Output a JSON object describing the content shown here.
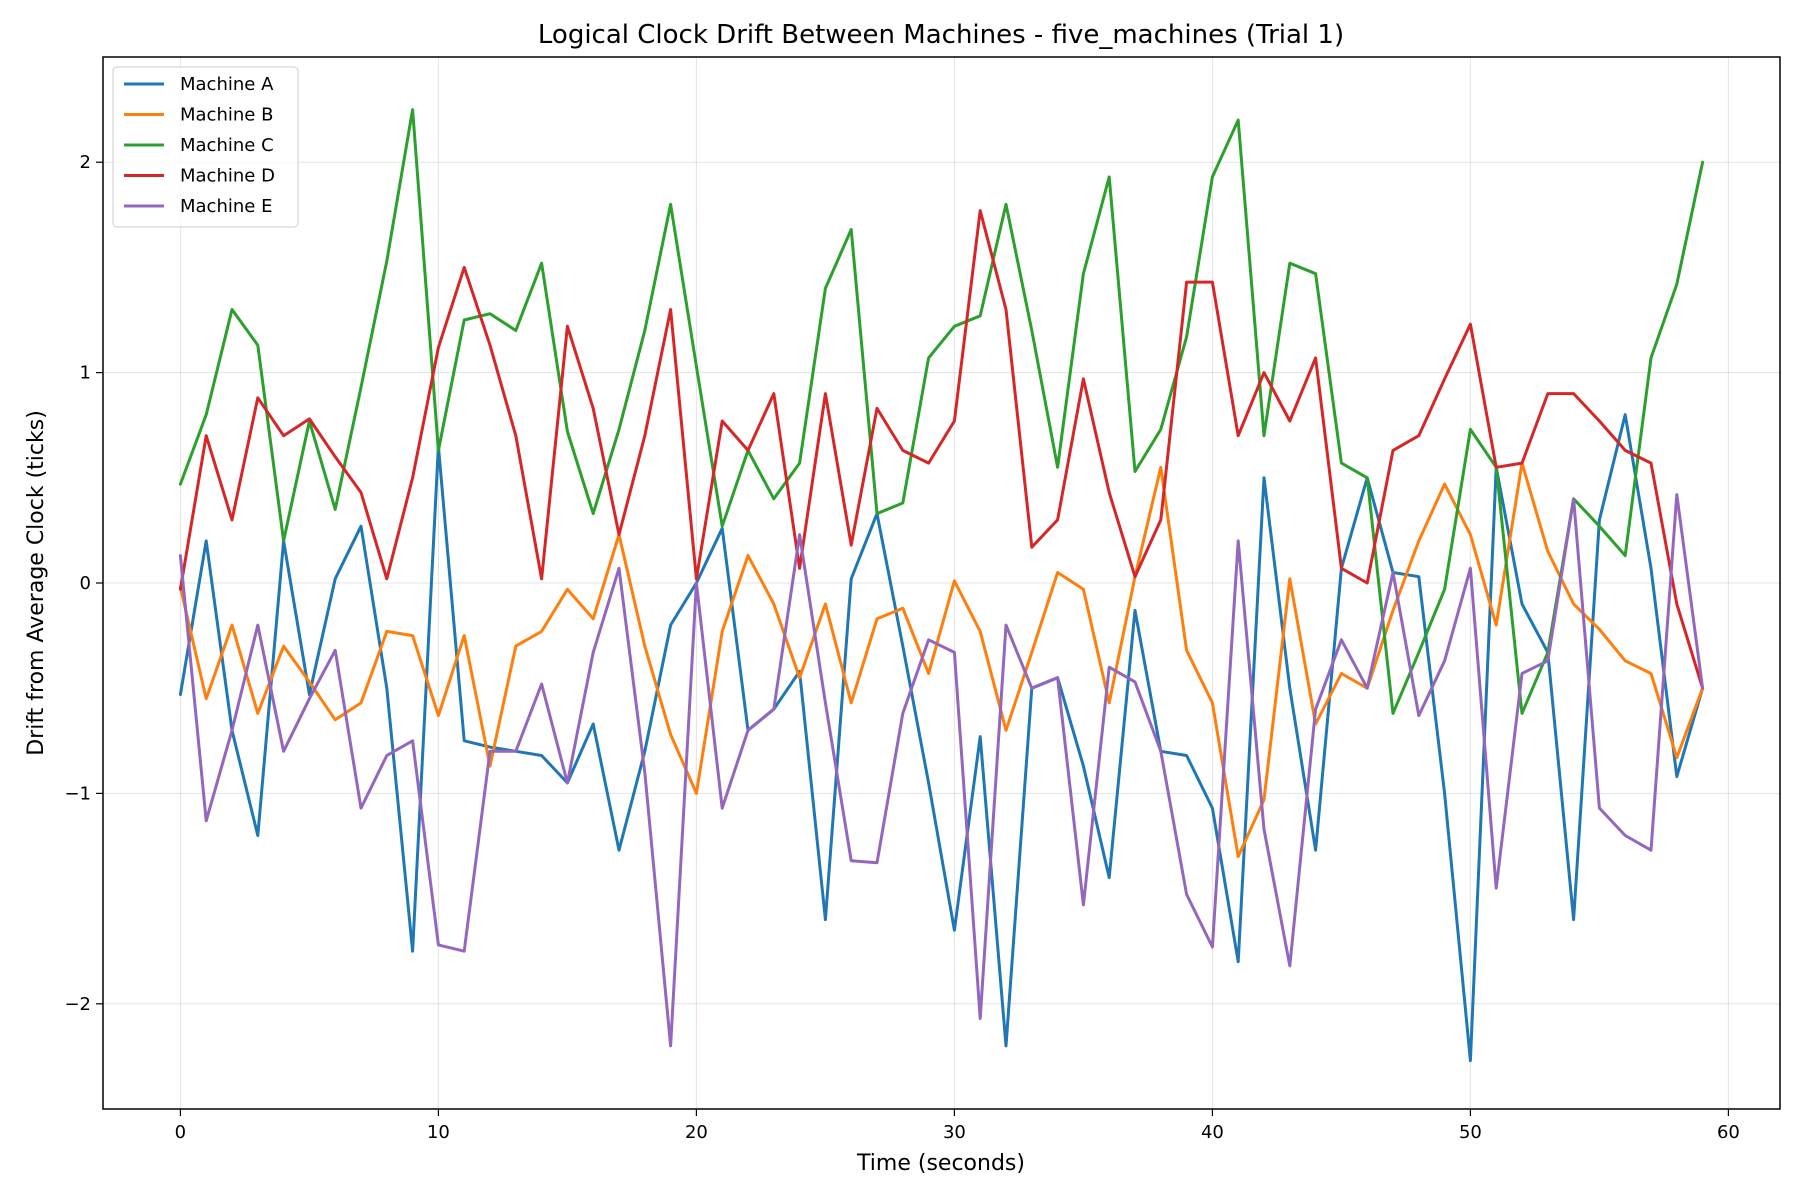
{
  "chart_data": {
    "type": "line",
    "title": "Logical Clock Drift Between Machines - five_machines (Trial 1)",
    "xlabel": "Time (seconds)",
    "ylabel": "Drift from Average Clock (ticks)",
    "xlim": [
      -3,
      62
    ],
    "ylim": [
      -2.5,
      2.5
    ],
    "xticks": [
      0,
      10,
      20,
      30,
      40,
      50,
      60
    ],
    "xtick_labels": [
      "0",
      "10",
      "20",
      "30",
      "40",
      "50",
      "60"
    ],
    "yticks": [
      -2,
      -1,
      0,
      1,
      2
    ],
    "ytick_labels": [
      "−2",
      "−1",
      "0",
      "1",
      "2"
    ],
    "grid": true,
    "legend_position": "top-left",
    "x": [
      0,
      1,
      2,
      3,
      4,
      5,
      6,
      7,
      8,
      9,
      10,
      11,
      12,
      13,
      14,
      15,
      16,
      17,
      18,
      19,
      20,
      21,
      22,
      23,
      24,
      25,
      26,
      27,
      28,
      29,
      30,
      31,
      32,
      33,
      34,
      35,
      36,
      37,
      38,
      39,
      40,
      41,
      42,
      43,
      44,
      45,
      46,
      47,
      48,
      49,
      50,
      51,
      52,
      53,
      54,
      55,
      56,
      57,
      58,
      59
    ],
    "series": [
      {
        "name": "Machine A",
        "color": "#1f77b4",
        "values": [
          -0.53,
          0.2,
          -0.7,
          -1.2,
          0.2,
          -0.53,
          0.02,
          0.27,
          -0.5,
          -1.75,
          0.65,
          -0.75,
          -0.78,
          -0.8,
          -0.82,
          -0.95,
          -0.67,
          -1.27,
          -0.8,
          -0.2,
          0.0,
          0.26,
          -0.7,
          -0.6,
          -0.42,
          -1.6,
          0.02,
          0.33,
          -0.3,
          -0.95,
          -1.65,
          -0.73,
          -2.2,
          -0.5,
          -0.45,
          -0.87,
          -1.4,
          -0.13,
          -0.8,
          -0.82,
          -1.07,
          -1.8,
          0.5,
          -0.5,
          -1.27,
          0.07,
          0.5,
          0.05,
          0.03,
          -1.0,
          -2.27,
          0.55,
          -0.1,
          -0.33,
          -1.6,
          0.3,
          0.8,
          0.07,
          -0.92,
          -0.5
        ]
      },
      {
        "name": "Machine B",
        "color": "#ff7f0e",
        "values": [
          -0.02,
          -0.55,
          -0.2,
          -0.62,
          -0.3,
          -0.47,
          -0.65,
          -0.57,
          -0.23,
          -0.25,
          -0.63,
          -0.25,
          -0.87,
          -0.3,
          -0.23,
          -0.03,
          -0.17,
          0.23,
          -0.3,
          -0.72,
          -1.0,
          -0.23,
          0.13,
          -0.1,
          -0.45,
          -0.1,
          -0.57,
          -0.17,
          -0.12,
          -0.43,
          0.01,
          -0.23,
          -0.7,
          -0.33,
          0.05,
          -0.03,
          -0.57,
          0.03,
          0.55,
          -0.32,
          -0.57,
          -1.3,
          -1.03,
          0.02,
          -0.67,
          -0.43,
          -0.5,
          -0.13,
          0.2,
          0.47,
          0.23,
          -0.2,
          0.57,
          0.15,
          -0.1,
          -0.22,
          -0.37,
          -0.43,
          -0.83,
          -0.5
        ]
      },
      {
        "name": "Machine C",
        "color": "#2ca02c",
        "values": [
          0.47,
          0.8,
          1.3,
          1.13,
          0.2,
          0.77,
          0.35,
          0.93,
          1.53,
          2.25,
          0.63,
          1.25,
          1.28,
          1.2,
          1.52,
          0.72,
          0.33,
          0.73,
          1.2,
          1.8,
          1.03,
          0.27,
          0.63,
          0.4,
          0.57,
          1.4,
          1.68,
          0.33,
          0.38,
          1.07,
          1.22,
          1.27,
          1.8,
          1.2,
          0.55,
          1.47,
          1.93,
          0.53,
          0.73,
          1.17,
          1.93,
          2.2,
          0.7,
          1.52,
          1.47,
          0.57,
          0.5,
          -0.62,
          -0.33,
          -0.03,
          0.73,
          0.55,
          -0.62,
          -0.33,
          0.4,
          0.27,
          0.13,
          1.07,
          1.42,
          2.0
        ]
      },
      {
        "name": "Machine D",
        "color": "#d62728",
        "values": [
          -0.03,
          0.7,
          0.3,
          0.88,
          0.7,
          0.78,
          0.6,
          0.43,
          0.02,
          0.5,
          1.12,
          1.5,
          1.13,
          0.7,
          0.02,
          1.22,
          0.83,
          0.23,
          0.7,
          1.3,
          0.02,
          0.77,
          0.63,
          0.9,
          0.07,
          0.9,
          0.18,
          0.83,
          0.63,
          0.57,
          0.77,
          1.77,
          1.3,
          0.17,
          0.3,
          0.97,
          0.43,
          0.03,
          0.3,
          1.43,
          1.43,
          0.7,
          1.0,
          0.77,
          1.07,
          0.07,
          0.0,
          0.63,
          0.7,
          0.97,
          1.23,
          0.55,
          0.57,
          0.9,
          0.9,
          0.77,
          0.63,
          0.57,
          -0.1,
          -0.5
        ]
      },
      {
        "name": "Machine E",
        "color": "#9467bd",
        "values": [
          0.13,
          -1.13,
          -0.7,
          -0.2,
          -0.8,
          -0.55,
          -0.32,
          -1.07,
          -0.82,
          -0.75,
          -1.72,
          -1.75,
          -0.8,
          -0.8,
          -0.48,
          -0.95,
          -0.33,
          0.07,
          -0.9,
          -2.2,
          0.0,
          -1.07,
          -0.7,
          -0.6,
          0.23,
          -0.57,
          -1.32,
          -1.33,
          -0.62,
          -0.27,
          -0.33,
          -2.07,
          -0.2,
          -0.5,
          -0.45,
          -1.53,
          -0.4,
          -0.47,
          -0.8,
          -1.48,
          -1.73,
          0.2,
          -1.17,
          -1.82,
          -0.6,
          -0.27,
          -0.5,
          0.05,
          -0.63,
          -0.37,
          0.07,
          -1.45,
          -0.43,
          -0.37,
          0.4,
          -1.07,
          -1.2,
          -1.27,
          0.42,
          -0.5
        ]
      }
    ]
  }
}
